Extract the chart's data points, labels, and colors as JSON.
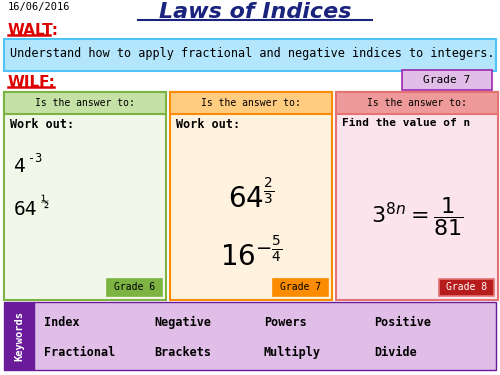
{
  "title": "Laws of Indices",
  "date": "16/06/2016",
  "walt_label": "WALT:",
  "walt_text": "Understand how to apply fractional and negative indices to integers.",
  "wilf_label": "WILF:",
  "grade7_badge": "Grade 7",
  "col1_header": "Is the answer to:",
  "col2_header": "Is the answer to:",
  "col3_header": "Is the answer to:",
  "col1_grade": "Grade 6",
  "col2_grade": "Grade 7",
  "col3_grade": "Grade 8",
  "kw_label": "Keywords",
  "keywords": [
    "Index",
    "Negative",
    "Powers",
    "Positive",
    "Fractional",
    "Brackets",
    "Multiply",
    "Divide"
  ],
  "bg_color": "#ffffff",
  "title_color": "#1a237e",
  "walt_color": "#dd0000",
  "wilf_color": "#dd0000",
  "walt_bg": "#b3e5fc",
  "walt_border": "#4fc3f7",
  "col1_header_bg": "#c5e1a5",
  "col1_bg": "#f1f8e9",
  "col1_border": "#7cb342",
  "col1_grade_bg": "#7cb342",
  "col2_header_bg": "#ffcc80",
  "col2_bg": "#fff3e0",
  "col2_border": "#fb8c00",
  "col2_grade_bg": "#fb8c00",
  "col3_header_bg": "#ef9a9a",
  "col3_bg": "#fce4ec",
  "col3_border": "#e57373",
  "col3_grade_bg": "#b71c1c",
  "grade7_bg": "#e1bee7",
  "grade7_border": "#9c27b0",
  "kw_sidebar_bg": "#6a1b9a",
  "kw_bg": "#e1bee7",
  "kw_border": "#6a1b9a"
}
